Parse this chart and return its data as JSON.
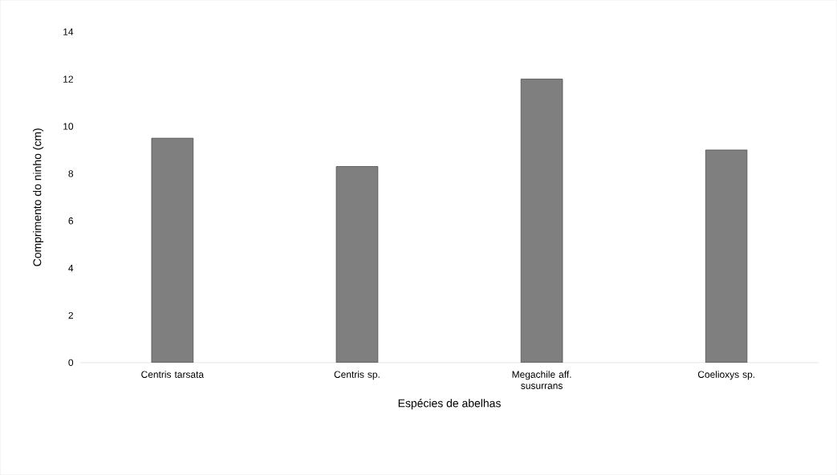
{
  "chart_data": {
    "type": "bar",
    "xlabel": "Espécies de abelhas",
    "ylabel": "Comprimento do ninho (cm)",
    "categories": [
      "Centris tarsata",
      "Centris sp.",
      "Megachile  aff. susurrans",
      "Coelioxys sp."
    ],
    "values": [
      9.5,
      8.3,
      12,
      9
    ],
    "color": "#7f7f7f",
    "ylim": [
      0,
      14
    ],
    "yticks": [
      0,
      2,
      4,
      6,
      8,
      10,
      12,
      14
    ]
  }
}
